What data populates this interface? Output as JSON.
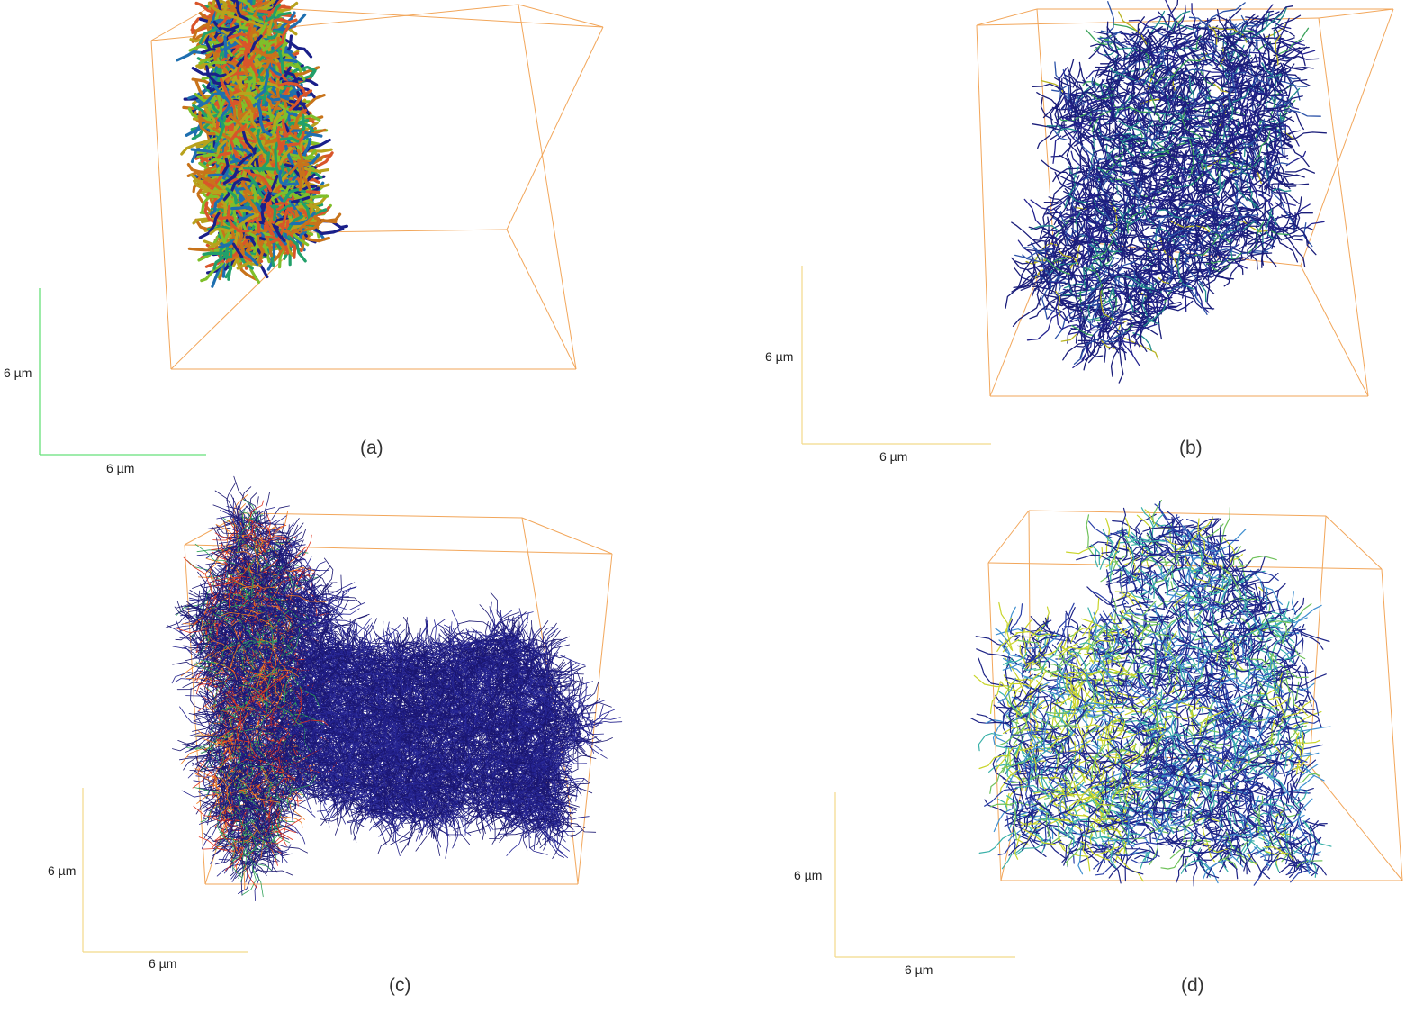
{
  "figure": {
    "panels": [
      {
        "id": "a",
        "label": "(a)",
        "scale_vertical": "6 µm",
        "scale_horizontal": "6 µm",
        "scale_color": "#66e07a",
        "network_palette": [
          "#1a1f8a",
          "#1e6fb0",
          "#22a06a",
          "#7fbf2a",
          "#b8a21c",
          "#c8731a",
          "#d9552a"
        ]
      },
      {
        "id": "b",
        "label": "(b)",
        "scale_vertical": "6 µm",
        "scale_horizontal": "6 µm",
        "scale_color": "#f2d98a",
        "network_palette": [
          "#1a1d7a",
          "#24238f",
          "#2b52a8",
          "#208c8c",
          "#3aa35a",
          "#b7b31f"
        ]
      },
      {
        "id": "c",
        "label": "(c)",
        "scale_vertical": "6 µm",
        "scale_horizontal": "6 µm",
        "scale_color": "#f2d98a",
        "network_palette": [
          "#1a1670",
          "#22208a",
          "#2a2a9a",
          "#e0341e",
          "#f07a1e",
          "#31a25a"
        ]
      },
      {
        "id": "d",
        "label": "(d)",
        "scale_vertical": "6 µm",
        "scale_horizontal": "6 µm",
        "scale_color": "#f2d98a",
        "network_palette": [
          "#1c2285",
          "#2a3fa8",
          "#3f8fd0",
          "#39b0a8",
          "#6fc25a",
          "#c9d52a"
        ]
      }
    ],
    "box_color": "#f2a65a"
  }
}
